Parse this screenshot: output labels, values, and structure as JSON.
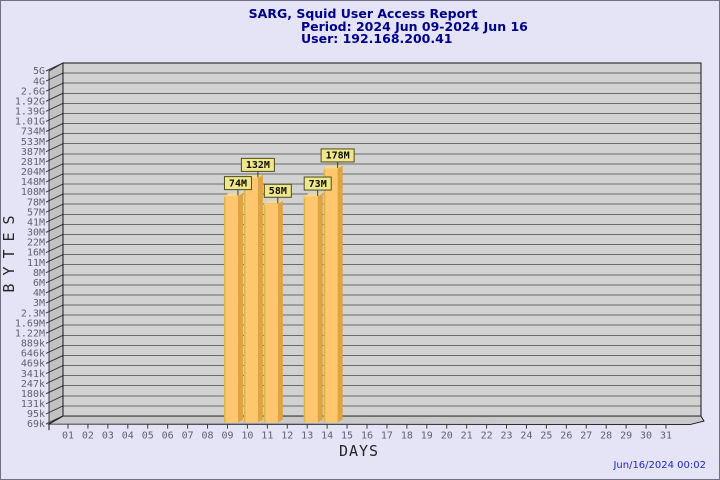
{
  "report": {
    "generated_at": "Jun/16/2024 00:02"
  },
  "colors": {
    "background": "#e4e4f6",
    "page_border": "#70707e",
    "title": "#00008b",
    "timestamp": "#2323c8",
    "plot_bg": "#d2d2d2",
    "wall": "#c2c2c2",
    "floor": "#c9c9c9",
    "gridline": "#6a6a6a",
    "frame": "#15151a",
    "axis_tick": "#3a3a3a",
    "axis_text": "#61616d",
    "axis_title_text": "#26262a",
    "bar_face": "#fdc66f",
    "bar_side": "#e0a342",
    "bar_top": "#f7da8e",
    "bar_edge": "#d8b84a",
    "value_box_bg": "#f0e68c",
    "value_box_border": "#4d4d1a",
    "value_text": "#0d0d00"
  },
  "chart_data": {
    "type": "bar",
    "title": "SARG, Squid User Access Report",
    "subtitle_period": "Period: 2024 Jun 09-2024 Jun 16",
    "subtitle_user": "User: 192.168.200.41",
    "xlabel": "DAYS",
    "ylabel": "BYTES",
    "y_scale": "log",
    "y_base_value": 69000,
    "y_step_ratio": 1.377,
    "grid": true,
    "legend": false,
    "y_tick_labels": [
      "5G",
      "4G",
      "2.6G",
      "1.92G",
      "1.39G",
      "1.01G",
      "734M",
      "533M",
      "387M",
      "281M",
      "204M",
      "148M",
      "108M",
      "78M",
      "57M",
      "41M",
      "30M",
      "22M",
      "16M",
      "11M",
      "8M",
      "6M",
      "4M",
      "3M",
      "2.3M",
      "1.69M",
      "1.22M",
      "889k",
      "646k",
      "469k",
      "341k",
      "247k",
      "180k",
      "131k",
      "95k",
      "69k"
    ],
    "x_tick_labels": [
      "01",
      "02",
      "03",
      "04",
      "05",
      "06",
      "07",
      "08",
      "09",
      "10",
      "11",
      "12",
      "13",
      "14",
      "15",
      "16",
      "17",
      "18",
      "19",
      "20",
      "21",
      "22",
      "23",
      "24",
      "25",
      "26",
      "27",
      "28",
      "29",
      "30",
      "31"
    ],
    "bars": [
      {
        "day": "09",
        "bytes": 74000000,
        "label": "74M"
      },
      {
        "day": "10",
        "bytes": 132000000,
        "label": "132M"
      },
      {
        "day": "11",
        "bytes": 58000000,
        "label": "58M"
      },
      {
        "day": "13",
        "bytes": 73000000,
        "label": "73M"
      },
      {
        "day": "14",
        "bytes": 178000000,
        "label": "178M"
      }
    ]
  }
}
